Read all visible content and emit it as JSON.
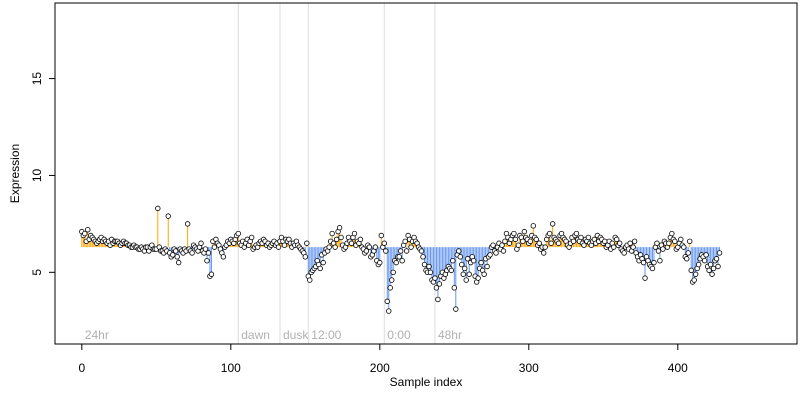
{
  "chart_data": {
    "type": "scatter",
    "xlabel": "Sample index",
    "ylabel": "Expression",
    "xlim": [
      -18,
      480
    ],
    "ylim": [
      1.3,
      18.9
    ],
    "xticks": [
      0,
      100,
      200,
      300,
      400
    ],
    "yticks": [
      5,
      10,
      15
    ],
    "baseline": 6.3,
    "colors": {
      "above": "#ffa500",
      "below": "#6495ed",
      "point_fill": "#ffffff",
      "point_stroke": "#000000"
    },
    "segments": [
      {
        "label": "24hr",
        "x": 0
      },
      {
        "label": "dawn",
        "x": 105
      },
      {
        "label": "dusk",
        "x": 133
      },
      {
        "label": "12:00",
        "x": 152
      },
      {
        "label": "0:00",
        "x": 203
      },
      {
        "label": "48hr",
        "x": 237
      }
    ],
    "series": [
      {
        "values": [
          7.1,
          6.9,
          7.0,
          6.6,
          7.2,
          6.7,
          6.9,
          6.8,
          6.7,
          6.6,
          6.5,
          6.6,
          6.7,
          6.8,
          6.6,
          6.7,
          6.6,
          6.5,
          6.6,
          6.4,
          6.7,
          6.5,
          6.6,
          6.6,
          6.6,
          6.5,
          6.4,
          6.5,
          6.6,
          6.5,
          6.5,
          6.4,
          6.4,
          6.3,
          6.3,
          6.4,
          6.3,
          6.3,
          6.2,
          6.2,
          6.3,
          6.2,
          6.1,
          6.3,
          6.3,
          6.1,
          6.3,
          6.4,
          6.2,
          6.2,
          6.2,
          8.3,
          6.3,
          6.1,
          6.1,
          6.0,
          6.2,
          6.1,
          7.9,
          6.0,
          5.8,
          5.9,
          6.2,
          6.1,
          5.8,
          5.5,
          6.2,
          6.1,
          6.0,
          6.2,
          6.1,
          7.5,
          6.2,
          6.1,
          6.0,
          6.4,
          6.3,
          6.2,
          6.1,
          6.3,
          6.5,
          6.1,
          6.0,
          6.2,
          5.6,
          6.0,
          4.8,
          4.9,
          6.6,
          6.3,
          6.7,
          6.5,
          6.4,
          6.2,
          6.0,
          5.8,
          6.3,
          6.4,
          6.6,
          6.5,
          6.7,
          6.6,
          6.5,
          6.7,
          6.9,
          7.0,
          6.5,
          6.4,
          6.6,
          6.3,
          6.5,
          6.7,
          6.4,
          6.6,
          6.8,
          6.2,
          6.3,
          6.4,
          6.3,
          6.5,
          6.6,
          6.5,
          6.7,
          6.6,
          6.4,
          6.5,
          6.3,
          6.4,
          6.5,
          6.6,
          6.4,
          6.5,
          6.3,
          6.6,
          6.8,
          6.6,
          6.4,
          6.7,
          6.6,
          6.7,
          6.5,
          6.3,
          6.5,
          6.4,
          6.6,
          6.4,
          6.3,
          6.2,
          6.1,
          6.0,
          5.8,
          6.5,
          4.8,
          4.6,
          5.0,
          5.1,
          5.2,
          5.3,
          5.6,
          5.4,
          5.2,
          5.9,
          5.5,
          6.0,
          6.2,
          6.1,
          6.3,
          6.6,
          7.0,
          6.5,
          6.3,
          6.7,
          7.1,
          7.3,
          6.8,
          6.4,
          6.2,
          6.3,
          6.5,
          6.8,
          6.6,
          6.5,
          6.8,
          7.0,
          6.4,
          6.6,
          6.5,
          6.7,
          6.3,
          6.2,
          6.0,
          6.1,
          6.4,
          6.3,
          5.8,
          5.9,
          6.1,
          6.3,
          5.6,
          5.4,
          5.5,
          6.9,
          6.3,
          6.5,
          6.1,
          3.5,
          3.0,
          4.2,
          4.6,
          5.0,
          5.6,
          5.5,
          5.8,
          5.8,
          6.1,
          5.6,
          6.4,
          6.6,
          6.1,
          6.9,
          6.7,
          6.3,
          6.6,
          6.8,
          6.6,
          6.5,
          6.3,
          6.2,
          6.1,
          5.8,
          5.4,
          5.1,
          5.0,
          5.3,
          5.0,
          4.6,
          4.5,
          4.7,
          4.2,
          3.6,
          4.4,
          4.8,
          5.0,
          4.7,
          4.9,
          5.1,
          5.3,
          5.2,
          5.1,
          5.6,
          4.2,
          3.1,
          5.9,
          6.1,
          5.8,
          5.4,
          4.9,
          5.2,
          4.6,
          5.7,
          4.9,
          5.5,
          5.8,
          5.6,
          4.8,
          4.5,
          4.7,
          5.2,
          5.5,
          5.1,
          4.9,
          5.7,
          5.3,
          5.8,
          5.9,
          6.3,
          6.4,
          6.1,
          6.0,
          6.3,
          6.5,
          6.2,
          6.4,
          6.1,
          6.6,
          7.0,
          6.8,
          6.5,
          6.7,
          6.9,
          7.0,
          6.7,
          6.2,
          6.4,
          6.9,
          6.8,
          6.6,
          7.1,
          6.8,
          6.7,
          6.5,
          6.6,
          6.9,
          7.4,
          6.8,
          6.7,
          6.4,
          6.5,
          6.2,
          6.3,
          6.0,
          6.3,
          6.7,
          6.9,
          7.0,
          6.5,
          7.5,
          6.8,
          6.7,
          6.6,
          6.5,
          6.9,
          7.0,
          6.8,
          6.7,
          6.6,
          6.4,
          6.3,
          6.5,
          6.8,
          6.6,
          6.9,
          7.0,
          6.7,
          6.6,
          6.8,
          6.5,
          6.4,
          6.7,
          6.6,
          6.8,
          6.5,
          6.4,
          6.6,
          6.7,
          6.5,
          6.9,
          6.6,
          6.8,
          6.7,
          6.5,
          6.6,
          6.3,
          6.4,
          6.6,
          6.2,
          6.5,
          6.3,
          6.8,
          6.7,
          6.4,
          6.5,
          6.2,
          6.1,
          6.0,
          6.3,
          6.4,
          6.2,
          6.5,
          6.1,
          6.3,
          6.6,
          6.0,
          5.8,
          5.6,
          5.9,
          5.7,
          5.5,
          4.7,
          5.8,
          5.6,
          5.4,
          5.3,
          5.2,
          5.5,
          6.3,
          6.5,
          6.1,
          5.6,
          6.4,
          6.2,
          6.6,
          6.5,
          6.3,
          6.5,
          6.8,
          7.0,
          6.7,
          6.6,
          6.2,
          6.3,
          6.5,
          6.7,
          6.4,
          6.3,
          5.8,
          5.7,
          6.0,
          6.6,
          5.1,
          4.5,
          4.6,
          4.9,
          5.2,
          5.4,
          5.7,
          5.9,
          5.8,
          5.6,
          5.9,
          5.3,
          5.1,
          5.4,
          4.9,
          5.2,
          5.6,
          5.7,
          5.3,
          6.0
        ]
      }
    ]
  }
}
